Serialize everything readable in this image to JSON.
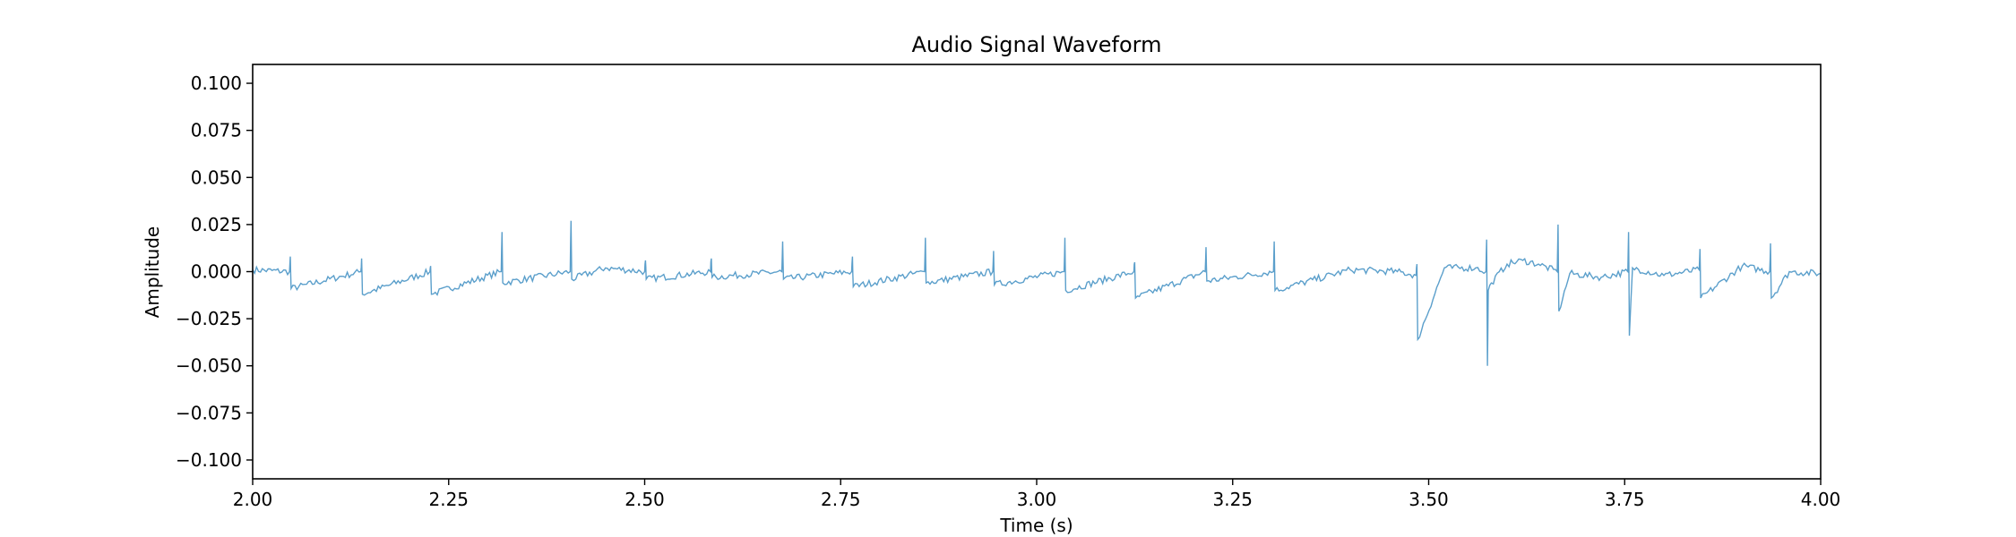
{
  "chart_data": {
    "type": "line",
    "title": "Audio Signal Waveform",
    "xlabel": "Time (s)",
    "ylabel": "Amplitude",
    "xlim": [
      2.0,
      4.0
    ],
    "ylim": [
      -0.11,
      0.11
    ],
    "xticks": [
      2.0,
      2.25,
      2.5,
      2.75,
      3.0,
      3.25,
      3.5,
      3.75,
      4.0
    ],
    "xtick_labels": [
      "2.00",
      "2.25",
      "2.50",
      "2.75",
      "3.00",
      "3.25",
      "3.50",
      "3.75",
      "4.00"
    ],
    "yticks": [
      0.1,
      0.075,
      0.05,
      0.025,
      0.0,
      -0.025,
      -0.05,
      -0.075,
      -0.1
    ],
    "ytick_labels": [
      "0.100",
      "0.075",
      "0.050",
      "0.025",
      "0.000",
      "−0.025",
      "−0.050",
      "−0.075",
      "−0.100"
    ],
    "grid": false,
    "series": [
      {
        "color": "#5b9fcb",
        "x": [
          2.0,
          2.047,
          2.048,
          2.049,
          2.138,
          2.139,
          2.14,
          2.226,
          2.227,
          2.228,
          2.317,
          2.318,
          2.319,
          2.405,
          2.406,
          2.407,
          2.45,
          2.5,
          2.501,
          2.502,
          2.584,
          2.585,
          2.586,
          2.675,
          2.676,
          2.677,
          2.764,
          2.765,
          2.766,
          2.857,
          2.858,
          2.859,
          2.944,
          2.945,
          2.946,
          3.035,
          3.036,
          3.037,
          3.124,
          3.125,
          3.126,
          3.215,
          3.216,
          3.217,
          3.302,
          3.303,
          3.304,
          3.4,
          3.46,
          3.484,
          3.485,
          3.486,
          3.52,
          3.56,
          3.573,
          3.574,
          3.575,
          3.576,
          3.58,
          3.6,
          3.62,
          3.64,
          3.664,
          3.665,
          3.666,
          3.68,
          3.72,
          3.754,
          3.755,
          3.756,
          3.76,
          3.8,
          3.845,
          3.846,
          3.847,
          3.9,
          3.935,
          3.936,
          3.937,
          3.96,
          4.0
        ],
        "y": [
          0.001,
          0.0,
          0.008,
          -0.009,
          0.0,
          0.007,
          -0.012,
          0.0,
          0.003,
          -0.012,
          0.0,
          0.021,
          -0.006,
          0.0,
          0.027,
          -0.004,
          0.002,
          0.0,
          0.006,
          -0.004,
          0.0,
          0.007,
          -0.003,
          0.0,
          0.016,
          -0.004,
          0.0,
          0.008,
          -0.008,
          0.0,
          0.018,
          -0.006,
          0.0,
          0.011,
          -0.007,
          0.0,
          0.018,
          -0.01,
          0.0,
          0.005,
          -0.014,
          0.0,
          0.013,
          -0.005,
          0.0,
          0.016,
          -0.01,
          0.001,
          0.0,
          -0.002,
          0.004,
          -0.036,
          0.002,
          0.002,
          0.0,
          0.017,
          -0.05,
          -0.01,
          -0.006,
          0.004,
          0.006,
          0.004,
          0.0,
          0.025,
          -0.021,
          -0.001,
          -0.003,
          0.0,
          0.021,
          -0.034,
          0.002,
          -0.002,
          0.001,
          0.012,
          -0.014,
          0.003,
          0.0,
          0.015,
          -0.014,
          0.0,
          -0.001
        ]
      }
    ]
  }
}
